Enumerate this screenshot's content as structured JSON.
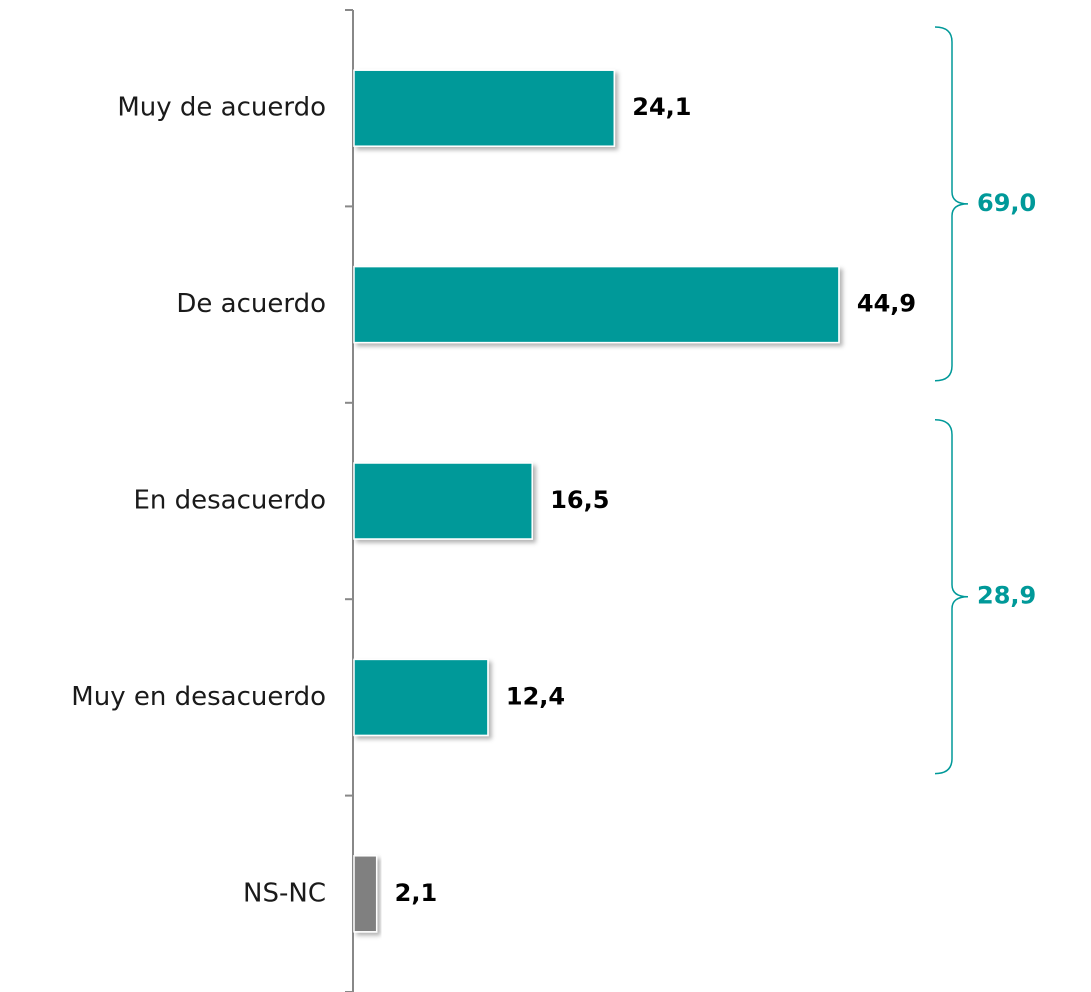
{
  "chart_data": {
    "type": "hbar",
    "categories": [
      "Muy de acuerdo",
      "De acuerdo",
      "En desacuerdo",
      "Muy en desacuerdo",
      "NS-NC"
    ],
    "values": [
      24.1,
      44.9,
      16.5,
      12.4,
      2.1
    ],
    "value_labels": [
      "24,1",
      "44,9",
      "16,5",
      "12,4",
      "2,1"
    ],
    "colors": [
      "#009999",
      "#009999",
      "#009999",
      "#009999",
      "#808080"
    ],
    "xlim": [
      0,
      60
    ],
    "groups": [
      {
        "value": 69.0,
        "label": "69,0",
        "span": [
          0,
          1
        ],
        "color": "#009999"
      },
      {
        "value": 28.9,
        "label": "28,9",
        "span": [
          2,
          3
        ],
        "color": "#009999"
      }
    ]
  }
}
